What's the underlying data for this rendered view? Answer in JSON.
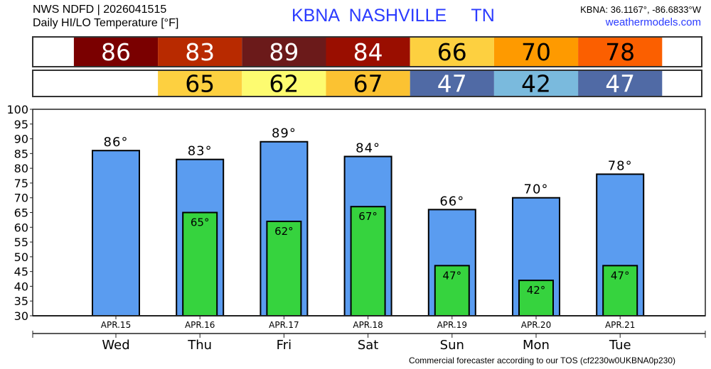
{
  "header": {
    "source": "NWS NDFD | 2026041515",
    "product": "Daily HI/LO Temperature [°F]",
    "station_title": "KBNA  NASHVILLE     TN",
    "coords": "KBNA: 36.1167°, -86.6833°W",
    "site": "weathermodels.com",
    "title_color": "#2b3bff"
  },
  "footer": {
    "note": "Commercial forecaster according to our TOS (cf2230w0UKBNA0p230)"
  },
  "chart_data": {
    "type": "bar",
    "categories": [
      "APR.15",
      "APR.16",
      "APR.17",
      "APR.18",
      "APR.19",
      "APR.20",
      "APR.21"
    ],
    "weekdays": [
      "Wed",
      "Thu",
      "Fri",
      "Sat",
      "Sun",
      "Mon",
      "Tue"
    ],
    "series": [
      {
        "key": "hi",
        "values": [
          86,
          83,
          89,
          84,
          66,
          70,
          78
        ],
        "color": "#5a9cf0",
        "strip_colors": [
          "#7a0000",
          "#b82a00",
          "#6b1a1a",
          "#9a0e00",
          "#fdd040",
          "#fe9a00",
          "#fb5f00"
        ],
        "strip_text_colors": [
          "#fff",
          "#fff",
          "#fff",
          "#fff",
          "#000",
          "#000",
          "#000"
        ]
      },
      {
        "key": "lo",
        "values": [
          null,
          65,
          62,
          67,
          47,
          42,
          47
        ],
        "color": "#36d33e",
        "strip_colors": [
          null,
          "#fdd040",
          "#fdfb70",
          "#fbc232",
          "#506aa5",
          "#7abadd",
          "#506aa5"
        ],
        "strip_text_colors": [
          null,
          "#000",
          "#000",
          "#000",
          "#fff",
          "#000",
          "#fff"
        ]
      }
    ],
    "ylim": [
      30,
      100
    ],
    "yticks": [
      30,
      35,
      40,
      45,
      50,
      55,
      60,
      65,
      70,
      75,
      80,
      85,
      90,
      95,
      100
    ],
    "label_suffix": "°",
    "grid": false
  }
}
